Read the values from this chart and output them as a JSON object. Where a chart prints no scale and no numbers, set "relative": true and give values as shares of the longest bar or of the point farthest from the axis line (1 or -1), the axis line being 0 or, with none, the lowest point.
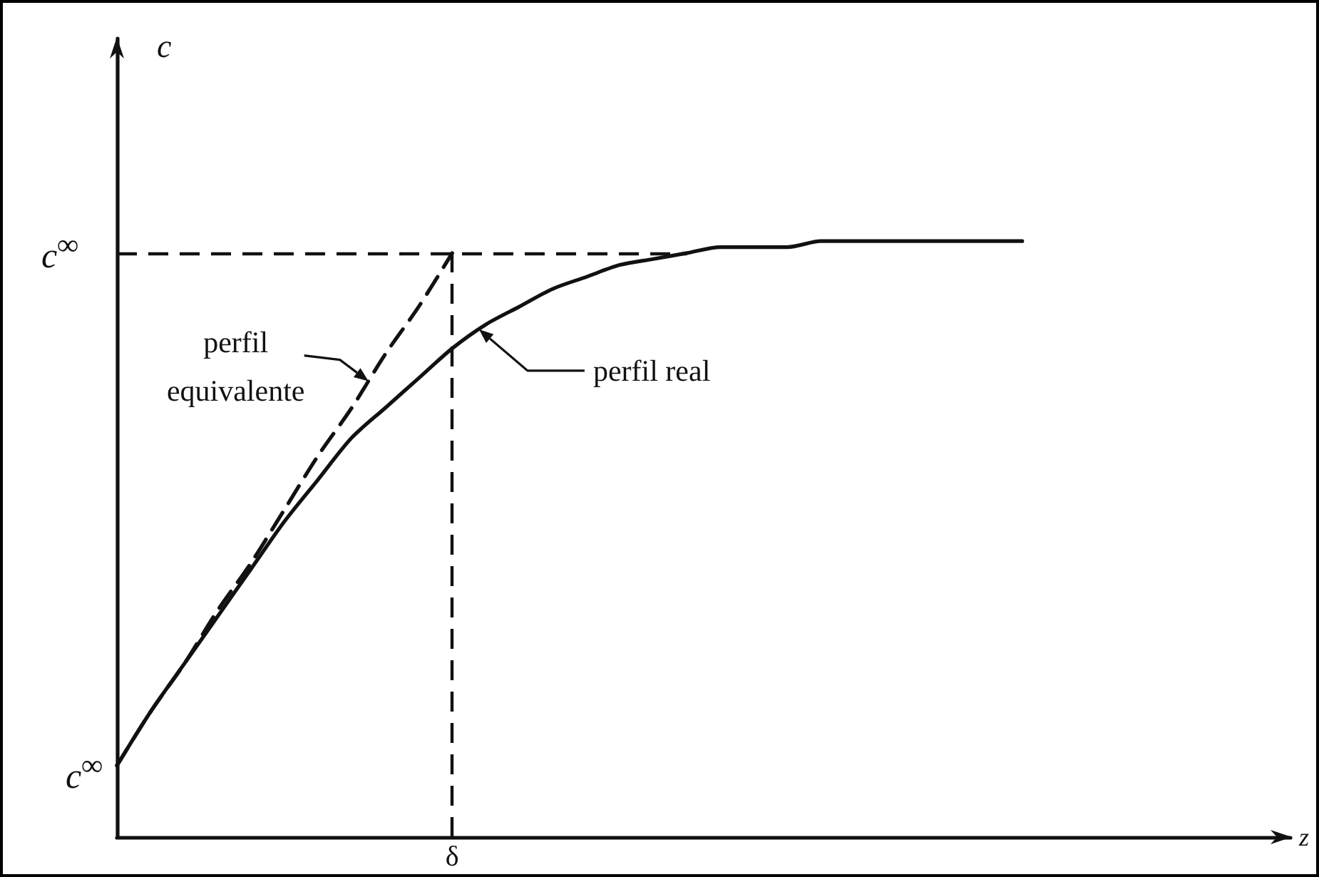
{
  "chart_data": {
    "type": "line",
    "xlabel": "z",
    "relative": true,
    "marker": "none",
    "line_style": "solid",
    "categories": [
      null,
      null,
      null,
      null,
      null,
      null,
      null,
      null,
      null,
      null,
      null,
      null,
      null,
      null,
      null,
      null,
      null,
      null,
      null,
      null,
      null,
      null,
      null,
      null,
      null,
      null,
      null,
      null,
      null,
      null,
      null,
      null,
      null,
      null,
      null,
      null
    ],
    "series": [
      {
        "name": "perfil real",
        "color": "#111111",
        "values": [
          0.12,
          0.21,
          0.29,
          0.37,
          0.45,
          0.53,
          0.6,
          0.67,
          0.72,
          0.77,
          0.82,
          0.86,
          0.89,
          0.92,
          0.94,
          0.96,
          0.97,
          0.98,
          0.99,
          0.99,
          0.99,
          1.0,
          1.0,
          1.0,
          1.0,
          1.0,
          1.0,
          1.0,
          null,
          null,
          null,
          null,
          null,
          null,
          null,
          null
        ]
      },
      {
        "name": "perfil equivalente",
        "color": "#111111",
        "line_style": "dashed",
        "values": [
          0.12,
          0.21,
          0.29,
          0.38,
          0.46,
          0.55,
          0.64,
          0.72,
          0.81,
          0.89,
          0.98,
          null,
          null,
          null,
          null,
          null,
          null,
          null,
          null,
          null,
          null,
          null,
          null,
          null,
          null,
          null,
          null,
          null,
          null,
          null,
          null,
          null,
          null,
          null,
          null,
          null
        ]
      }
    ],
    "ref_lines": [
      {
        "axis": "y",
        "value": 0.98,
        "label": "c$^{∞}$",
        "color": "#111111",
        "line_style": "dashed"
      }
    ],
    "annotations": [
      "c",
      "c$^{∞}$",
      "δ"
    ]
  }
}
